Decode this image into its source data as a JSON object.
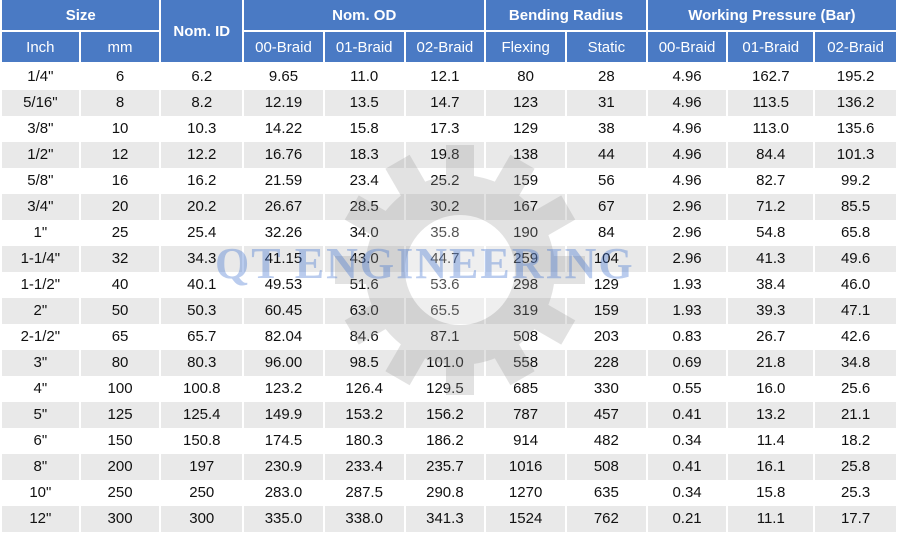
{
  "header": {
    "size": "Size",
    "nom_id": "Nom. ID",
    "nom_od": "Nom. OD",
    "bending_radius": "Bending Radius",
    "working_pressure": "Working Pressure (Bar)",
    "sub": [
      "Inch",
      "mm",
      "00-Braid",
      "01-Braid",
      "02-Braid",
      "Flexing",
      "Static",
      "00-Braid",
      "01-Braid",
      "02-Braid"
    ]
  },
  "rows": [
    [
      "1/4\"",
      "6",
      "6.2",
      "9.65",
      "11.0",
      "12.1",
      "80",
      "28",
      "4.96",
      "162.7",
      "195.2"
    ],
    [
      "5/16\"",
      "8",
      "8.2",
      "12.19",
      "13.5",
      "14.7",
      "123",
      "31",
      "4.96",
      "113.5",
      "136.2"
    ],
    [
      "3/8\"",
      "10",
      "10.3",
      "14.22",
      "15.8",
      "17.3",
      "129",
      "38",
      "4.96",
      "113.0",
      "135.6"
    ],
    [
      "1/2\"",
      "12",
      "12.2",
      "16.76",
      "18.3",
      "19.8",
      "138",
      "44",
      "4.96",
      "84.4",
      "101.3"
    ],
    [
      "5/8\"",
      "16",
      "16.2",
      "21.59",
      "23.4",
      "25.2",
      "159",
      "56",
      "4.96",
      "82.7",
      "99.2"
    ],
    [
      "3/4\"",
      "20",
      "20.2",
      "26.67",
      "28.5",
      "30.2",
      "167",
      "67",
      "2.96",
      "71.2",
      "85.5"
    ],
    [
      "1\"",
      "25",
      "25.4",
      "32.26",
      "34.0",
      "35.8",
      "190",
      "84",
      "2.96",
      "54.8",
      "65.8"
    ],
    [
      "1-1/4\"",
      "32",
      "34.3",
      "41.15",
      "43.0",
      "44.7",
      "259",
      "104",
      "2.96",
      "41.3",
      "49.6"
    ],
    [
      "1-1/2\"",
      "40",
      "40.1",
      "49.53",
      "51.6",
      "53.6",
      "298",
      "129",
      "1.93",
      "38.4",
      "46.0"
    ],
    [
      "2\"",
      "50",
      "50.3",
      "60.45",
      "63.0",
      "65.5",
      "319",
      "159",
      "1.93",
      "39.3",
      "47.1"
    ],
    [
      "2-1/2\"",
      "65",
      "65.7",
      "82.04",
      "84.6",
      "87.1",
      "508",
      "203",
      "0.83",
      "26.7",
      "42.6"
    ],
    [
      "3\"",
      "80",
      "80.3",
      "96.00",
      "98.5",
      "101.0",
      "558",
      "228",
      "0.69",
      "21.8",
      "34.8"
    ],
    [
      "4\"",
      "100",
      "100.8",
      "123.2",
      "126.4",
      "129.5",
      "685",
      "330",
      "0.55",
      "16.0",
      "25.6"
    ],
    [
      "5\"",
      "125",
      "125.4",
      "149.9",
      "153.2",
      "156.2",
      "787",
      "457",
      "0.41",
      "13.2",
      "21.1"
    ],
    [
      "6\"",
      "150",
      "150.8",
      "174.5",
      "180.3",
      "186.2",
      "914",
      "482",
      "0.34",
      "11.4",
      "18.2"
    ],
    [
      "8\"",
      "200",
      "197",
      "230.9",
      "233.4",
      "235.7",
      "1016",
      "508",
      "0.41",
      "16.1",
      "25.8"
    ],
    [
      "10\"",
      "250",
      "250",
      "283.0",
      "287.5",
      "290.8",
      "1270",
      "635",
      "0.34",
      "15.8",
      "25.3"
    ],
    [
      "12\"",
      "300",
      "300",
      "335.0",
      "338.0",
      "341.3",
      "1524",
      "762",
      "0.21",
      "11.1",
      "17.7"
    ]
  ],
  "watermark": {
    "text": "QT ENGINEERING",
    "icon": "gear-icon"
  },
  "colors": {
    "header_bg": "#4a7ac4",
    "stripe": "#e9e9e9"
  }
}
